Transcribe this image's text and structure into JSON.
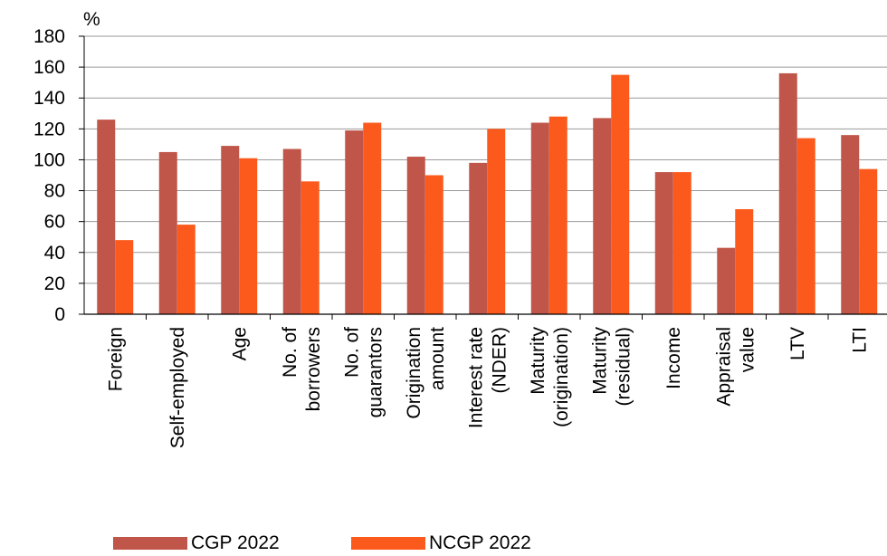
{
  "chart_data": {
    "type": "bar",
    "ylabel": "%",
    "ylim": [
      0,
      180
    ],
    "yticks": [
      0,
      20,
      40,
      60,
      80,
      100,
      120,
      140,
      160,
      180
    ],
    "grid": true,
    "legend_position": "bottom",
    "categories": [
      [
        "Foreign"
      ],
      [
        "Self-employed"
      ],
      [
        "Age"
      ],
      [
        "No. of",
        "borrowers"
      ],
      [
        "No. of",
        "guarantors"
      ],
      [
        "Origination",
        "amount"
      ],
      [
        "Interest rate",
        "(NDER)"
      ],
      [
        "Maturity",
        "(origination)"
      ],
      [
        "Maturity",
        "(residual)"
      ],
      [
        "Income"
      ],
      [
        "Appraisal",
        "value"
      ],
      [
        "LTV"
      ],
      [
        "LTI"
      ]
    ],
    "series": [
      {
        "name": "CGP 2022",
        "color": "#c0564a",
        "values": [
          126,
          105,
          109,
          107,
          119,
          102,
          98,
          124,
          127,
          92,
          43,
          156,
          116
        ]
      },
      {
        "name": "NCGP 2022",
        "color": "#fc5a1c",
        "values": [
          48,
          58,
          101,
          86,
          124,
          90,
          120,
          128,
          155,
          92,
          68,
          114,
          94
        ]
      }
    ]
  }
}
